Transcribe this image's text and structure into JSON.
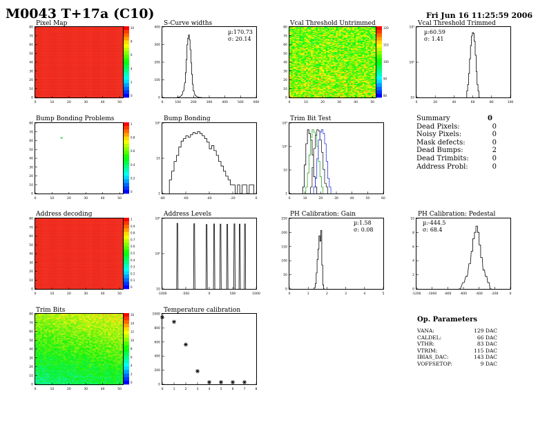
{
  "header": {
    "title": "M0043 T+17a (C10)",
    "date": "Fri Jun 16 11:25:59 2006"
  },
  "panels": {
    "pixel_map": {
      "title": "Pixel Map"
    },
    "scurve": {
      "title": "S-Curve widths",
      "mu": "µ:170.73",
      "sigma": "σ: 20.14"
    },
    "vcal_untrimmed": {
      "title": "Vcal Threshold Untrimmed"
    },
    "vcal_trimmed": {
      "title": "Vcal Threshold Trimmed",
      "mu": "µ:60.59",
      "sigma": "σ: 1.41"
    },
    "bump_problems": {
      "title": "Bump Bonding Problems"
    },
    "bump_bonding": {
      "title": "Bump Bonding"
    },
    "trim_bit_test": {
      "title": "Trim Bit Test"
    },
    "address_decoding": {
      "title": "Address decoding"
    },
    "address_levels": {
      "title": "Address Levels"
    },
    "ph_gain": {
      "title": "PH Calibration: Gain",
      "mu": "µ:1.58",
      "sigma": "σ: 0.08"
    },
    "ph_pedestal": {
      "title": "PH Calibration: Pedestal",
      "mu": "µ:-444.5",
      "sigma": "σ: 68.4"
    },
    "trim_bits": {
      "title": "Trim Bits"
    },
    "temperature": {
      "title": "Temperature calibration"
    }
  },
  "summary": {
    "title": "Summary",
    "total": "0",
    "rows": [
      {
        "label": "Dead Pixels:",
        "value": "0"
      },
      {
        "label": "Noisy Pixels:",
        "value": "0"
      },
      {
        "label": "Mask defects:",
        "value": "0"
      },
      {
        "label": "Dead Bumps:",
        "value": "2"
      },
      {
        "label": "Dead Trimbits:",
        "value": "0"
      },
      {
        "label": "Address Probl:",
        "value": "0"
      }
    ]
  },
  "op_params": {
    "title": "Op. Parameters",
    "rows": [
      {
        "label": "VANA:",
        "value": "129 DAC"
      },
      {
        "label": "CALDEL:",
        "value": "66 DAC"
      },
      {
        "label": "VTHR:",
        "value": "83 DAC"
      },
      {
        "label": "VTRIM:",
        "value": "115 DAC"
      },
      {
        "label": "IBIAS_DAC:",
        "value": "143 DAC"
      },
      {
        "label": "VOFFSETOP:",
        "value": "9 DAC"
      }
    ]
  },
  "colors": {
    "map_red": "#ef2a1c",
    "histo": "#000000",
    "trim_green": "#2aa52a",
    "trim_blue": "#2233dd"
  },
  "chart_data": [
    {
      "id": "pixel_map",
      "type": "heatmap",
      "xlim": [
        0,
        52
      ],
      "ylim": [
        0,
        80
      ],
      "xticks": [
        "0",
        "10",
        "20",
        "30",
        "40",
        "50"
      ],
      "yticks": [
        "0",
        "10",
        "20",
        "30",
        "40",
        "50",
        "60",
        "70",
        "80"
      ],
      "zticks": [
        "10",
        "8",
        "6",
        "4",
        "2",
        "0"
      ]
    },
    {
      "id": "scurve",
      "type": "line",
      "xlim": [
        0,
        600
      ],
      "xticks": [
        "0",
        "100",
        "200",
        "300",
        "400",
        "500",
        "600"
      ],
      "yticks": [
        "0",
        "100",
        "200",
        "300",
        "400"
      ],
      "x": [
        95,
        105,
        115,
        125,
        135,
        145,
        150,
        155,
        160,
        165,
        170,
        175,
        180,
        185,
        190,
        195,
        200,
        210,
        220,
        230,
        240,
        250
      ],
      "y": [
        0,
        2,
        6,
        15,
        40,
        90,
        150,
        230,
        320,
        360,
        380,
        350,
        290,
        210,
        140,
        80,
        40,
        15,
        6,
        2,
        0,
        0
      ]
    },
    {
      "id": "vcal_untrimmed",
      "type": "heatmap",
      "xlim": [
        0,
        52
      ],
      "ylim": [
        0,
        80
      ],
      "xticks": [
        "0",
        "10",
        "20",
        "30",
        "40",
        "50"
      ],
      "yticks": [
        "0",
        "10",
        "20",
        "30",
        "40",
        "50",
        "60",
        "70",
        "80"
      ],
      "zticks": [
        "120",
        "110",
        "100",
        "90",
        "80"
      ]
    },
    {
      "id": "vcal_trimmed",
      "type": "line",
      "log": true,
      "xlim": [
        0,
        100
      ],
      "xticks": [
        "0",
        "20",
        "40",
        "60",
        "80",
        "100"
      ],
      "yticks": [
        "10",
        "10²",
        "10³"
      ],
      "x": [
        54,
        55,
        56,
        57,
        58,
        59,
        60,
        61,
        62,
        63,
        64,
        65,
        66,
        67
      ],
      "y": [
        1,
        3,
        12,
        60,
        250,
        700,
        1000,
        900,
        400,
        90,
        15,
        3,
        1,
        0
      ]
    },
    {
      "id": "bump_problems",
      "type": "heatmap",
      "xlim": [
        0,
        52
      ],
      "ylim": [
        0,
        80
      ],
      "xticks": [
        "0",
        "10",
        "20",
        "30",
        "40",
        "50"
      ],
      "yticks": [
        "0",
        "10",
        "20",
        "30",
        "40",
        "50",
        "60",
        "70",
        "80"
      ],
      "zticks": [
        "1",
        "0.8",
        "0.6",
        "0.4",
        "0.2",
        "0"
      ],
      "points": [
        [
          15,
          63
        ]
      ]
    },
    {
      "id": "bump_bonding",
      "type": "line",
      "log": true,
      "xlim": [
        -80,
        0
      ],
      "xticks": [
        "-80",
        "-60",
        "-40",
        "-20",
        "0"
      ],
      "yticks": [
        "1",
        "10",
        "10²"
      ],
      "x": [
        -73,
        -71,
        -69,
        -67,
        -65,
        -63,
        -61,
        -59,
        -57,
        -55,
        -53,
        -51,
        -49,
        -47,
        -45,
        -43,
        -41,
        -39,
        -37,
        -35,
        -33,
        -31,
        -29,
        -27,
        -25,
        -23,
        -21,
        -19,
        -17,
        -15,
        -13,
        -11,
        -9,
        -7,
        -5,
        -3
      ],
      "y": [
        2,
        5,
        12,
        20,
        40,
        65,
        80,
        100,
        90,
        110,
        130,
        120,
        140,
        120,
        100,
        80,
        60,
        35,
        45,
        30,
        20,
        12,
        8,
        5,
        3,
        2,
        1,
        1,
        0,
        1,
        0,
        1,
        1,
        0,
        1,
        1
      ]
    },
    {
      "id": "trim_bit_test",
      "type": "line",
      "log": true,
      "xlim": [
        0,
        60
      ],
      "xticks": [
        "0",
        "10",
        "20",
        "30",
        "40",
        "50",
        "60"
      ],
      "yticks": [
        "1",
        "10",
        "10²",
        "10³"
      ],
      "series": [
        {
          "x": [
            9,
            10,
            11,
            12,
            13,
            14,
            15,
            16,
            17
          ],
          "y": [
            1,
            20,
            200,
            900,
            600,
            300,
            60,
            5,
            1
          ]
        },
        {
          "x": [
            11,
            12,
            13,
            14,
            15,
            16,
            17,
            18,
            19,
            20,
            21
          ],
          "y": [
            1,
            8,
            60,
            400,
            900,
            700,
            500,
            150,
            30,
            5,
            1
          ]
        },
        {
          "x": [
            14,
            15,
            16,
            17,
            18,
            19,
            20,
            21,
            22,
            23,
            24
          ],
          "y": [
            1,
            15,
            120,
            500,
            900,
            800,
            300,
            80,
            12,
            2,
            1
          ]
        },
        {
          "x": [
            16,
            17,
            18,
            19,
            20,
            21,
            22,
            23,
            24,
            25,
            26
          ],
          "y": [
            1,
            4,
            40,
            300,
            700,
            900,
            600,
            200,
            30,
            4,
            1
          ]
        }
      ]
    },
    {
      "id": "address_decoding",
      "type": "heatmap",
      "xlim": [
        0,
        52
      ],
      "ylim": [
        0,
        80
      ],
      "xticks": [
        "0",
        "10",
        "20",
        "30",
        "40",
        "50"
      ],
      "yticks": [
        "0",
        "10",
        "20",
        "30",
        "40",
        "50",
        "60",
        "70",
        "80"
      ],
      "zticks": [
        "1",
        "0.9",
        "0.8",
        "0.7",
        "0.6",
        "0.5",
        "0.4",
        "0.3",
        "0.2",
        "0.1",
        "0"
      ]
    },
    {
      "id": "address_levels",
      "type": "line",
      "log": true,
      "xlim": [
        -1500,
        1000
      ],
      "xticks": [
        "-1000",
        "-500",
        "0",
        "500",
        "1000"
      ],
      "yticks": [
        "10",
        "10²",
        "10³"
      ],
      "x": [
        -1100,
        -650,
        -320,
        -120,
        50,
        230,
        420,
        560,
        700
      ],
      "y": [
        5000,
        4800,
        4300,
        4600,
        4500,
        4400,
        4700,
        4500,
        4600
      ]
    },
    {
      "id": "ph_gain",
      "type": "line",
      "xlim": [
        0,
        5
      ],
      "xticks": [
        "0",
        "1",
        "2",
        "3",
        "4",
        "5"
      ],
      "yticks": [
        "0",
        "50",
        "100",
        "150",
        "200",
        "250"
      ],
      "x": [
        1.3,
        1.35,
        1.4,
        1.45,
        1.5,
        1.55,
        1.6,
        1.65,
        1.7,
        1.75,
        1.8,
        1.85
      ],
      "y": [
        0,
        5,
        20,
        60,
        110,
        150,
        200,
        180,
        220,
        90,
        15,
        0
      ]
    },
    {
      "id": "ph_pedestal",
      "type": "line",
      "xlim": [
        -1200,
        0
      ],
      "xticks": [
        "-1200",
        "-1000",
        "-800",
        "-600",
        "-400",
        "-200",
        "0"
      ],
      "yticks": [
        "0",
        "2",
        "4",
        "6",
        "8",
        "10"
      ],
      "x": [
        -650,
        -600,
        -560,
        -520,
        -490,
        -470,
        -450,
        -430,
        -410,
        -390,
        -370,
        -340,
        -310,
        -280,
        -250
      ],
      "y": [
        0,
        1,
        2,
        4,
        6,
        8,
        9,
        10,
        9,
        7,
        5,
        3,
        2,
        1,
        0
      ]
    },
    {
      "id": "trim_bits",
      "type": "heatmap",
      "xlim": [
        0,
        52
      ],
      "ylim": [
        0,
        80
      ],
      "xticks": [
        "0",
        "10",
        "20",
        "30",
        "40",
        "50"
      ],
      "yticks": [
        "0",
        "10",
        "20",
        "30",
        "40",
        "50",
        "60",
        "70",
        "80"
      ],
      "zticks": [
        "16",
        "14",
        "12",
        "10",
        "8",
        "6",
        "4",
        "2",
        "0"
      ]
    },
    {
      "id": "temperature",
      "type": "scatter",
      "xlim": [
        0,
        8
      ],
      "ylim": [
        0,
        1000
      ],
      "xticks": [
        "0",
        "1",
        "2",
        "3",
        "4",
        "5",
        "6",
        "7",
        "8"
      ],
      "yticks": [
        "0",
        "200",
        "400",
        "600",
        "800",
        "1000"
      ],
      "x": [
        0,
        1,
        2,
        3,
        4,
        5,
        6,
        7
      ],
      "y": [
        1000,
        930,
        580,
        170,
        0,
        0,
        0,
        0
      ]
    }
  ]
}
